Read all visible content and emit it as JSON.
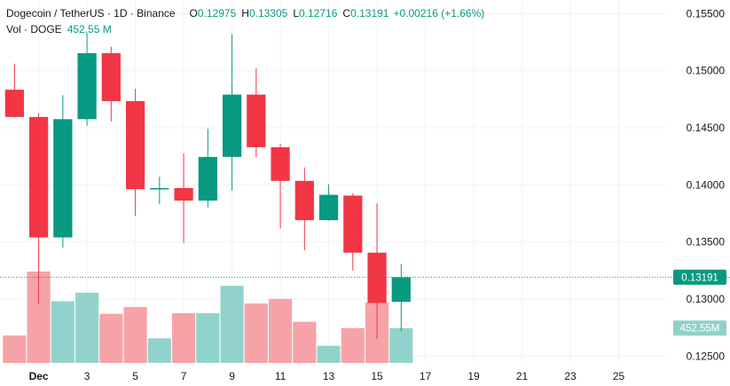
{
  "legend": {
    "symbol": "Dogecoin / TetherUS · 1D · Binance",
    "open_label": "O",
    "open_value": "0.12975",
    "high_label": "H",
    "high_value": "0.13305",
    "low_label": "L",
    "low_value": "0.12716",
    "close_label": "C",
    "close_value": "0.13191",
    "change_value": "+0.00216 (+1.66%)",
    "volume_label": "Vol · DOGE",
    "volume_value": "452.55 M"
  },
  "price_tag": {
    "value": "0.13191",
    "color": "#089981"
  },
  "volume_tag": {
    "value": "452.55M",
    "color": "#8fd1c8"
  },
  "colors": {
    "up": "#089981",
    "down": "#f23645",
    "volume_up": "#91d3cc",
    "volume_down": "#f6a3a8",
    "grid": "#f0f3fa"
  },
  "chart_data": {
    "type": "candlestick",
    "symbol": "Dogecoin / TetherUS",
    "interval": "1D",
    "exchange": "Binance",
    "y_ticks": [
      "0.15500",
      "0.15000",
      "0.14500",
      "0.14000",
      "0.13500",
      "0.13000",
      "0.12500"
    ],
    "x_ticks": [
      {
        "label": "Dec",
        "day": 1
      },
      {
        "label": "3",
        "day": 3
      },
      {
        "label": "5",
        "day": 5
      },
      {
        "label": "7",
        "day": 7
      },
      {
        "label": "9",
        "day": 9
      },
      {
        "label": "11",
        "day": 11
      },
      {
        "label": "13",
        "day": 13
      },
      {
        "label": "15",
        "day": 15
      },
      {
        "label": "17",
        "day": 17
      },
      {
        "label": "19",
        "day": 19
      },
      {
        "label": "21",
        "day": 21
      },
      {
        "label": "23",
        "day": 23
      },
      {
        "label": "25",
        "day": 25
      }
    ],
    "ylim": [
      0.1244,
      0.1562
    ],
    "xlim": [
      -0.6,
      27.0
    ],
    "grid": true,
    "candles": [
      {
        "day": 0,
        "open": 0.14834,
        "high": 0.15062,
        "low": 0.14587,
        "close": 0.14595,
        "volume": 240
      },
      {
        "day": 1,
        "open": 0.14595,
        "high": 0.1463,
        "low": 0.1296,
        "close": 0.1354,
        "volume": 800
      },
      {
        "day": 2,
        "open": 0.1354,
        "high": 0.14786,
        "low": 0.13451,
        "close": 0.14576,
        "volume": 540
      },
      {
        "day": 3,
        "open": 0.14576,
        "high": 0.1533,
        "low": 0.14517,
        "close": 0.15154,
        "volume": 615
      },
      {
        "day": 4,
        "open": 0.15154,
        "high": 0.15211,
        "low": 0.14555,
        "close": 0.14734,
        "volume": 430
      },
      {
        "day": 5,
        "open": 0.14734,
        "high": 0.14843,
        "low": 0.13727,
        "close": 0.13962,
        "volume": 490
      },
      {
        "day": 6,
        "open": 0.13962,
        "high": 0.14074,
        "low": 0.13832,
        "close": 0.13972,
        "volume": 215
      },
      {
        "day": 7,
        "open": 0.13972,
        "high": 0.14278,
        "low": 0.13491,
        "close": 0.13862,
        "volume": 435
      },
      {
        "day": 8,
        "open": 0.13862,
        "high": 0.14491,
        "low": 0.13803,
        "close": 0.14245,
        "volume": 435
      },
      {
        "day": 9,
        "open": 0.14245,
        "high": 0.15321,
        "low": 0.13949,
        "close": 0.14791,
        "volume": 675
      },
      {
        "day": 10,
        "open": 0.14791,
        "high": 0.15023,
        "low": 0.14239,
        "close": 0.1433,
        "volume": 520
      },
      {
        "day": 11,
        "open": 0.1433,
        "high": 0.1436,
        "low": 0.13617,
        "close": 0.14035,
        "volume": 560
      },
      {
        "day": 12,
        "open": 0.14035,
        "high": 0.14153,
        "low": 0.13427,
        "close": 0.13691,
        "volume": 360
      },
      {
        "day": 13,
        "open": 0.13691,
        "high": 0.14006,
        "low": 0.13687,
        "close": 0.13913,
        "volume": 150
      },
      {
        "day": 14,
        "open": 0.13906,
        "high": 0.13926,
        "low": 0.13249,
        "close": 0.13406,
        "volume": 305
      },
      {
        "day": 15,
        "open": 0.13406,
        "high": 0.13838,
        "low": 0.1265,
        "close": 0.12965,
        "volume": 530
      },
      {
        "day": 16,
        "open": 0.12975,
        "high": 0.13305,
        "low": 0.12716,
        "close": 0.13191,
        "volume": 305
      }
    ]
  }
}
